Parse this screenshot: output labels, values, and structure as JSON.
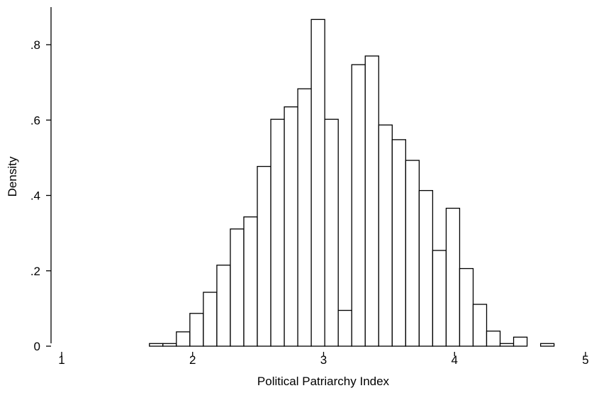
{
  "chart_data": {
    "type": "bar",
    "subtype": "histogram",
    "title": "",
    "xlabel": "Political Patriarchy Index",
    "ylabel": "Density",
    "xlim": [
      1,
      5
    ],
    "ylim": [
      0,
      0.9
    ],
    "xticks": [
      {
        "value": 1,
        "label": "1"
      },
      {
        "value": 2,
        "label": "2"
      },
      {
        "value": 3,
        "label": "3"
      },
      {
        "value": 4,
        "label": "4"
      },
      {
        "value": 5,
        "label": "5"
      }
    ],
    "yticks": [
      {
        "value": 0,
        "label": "0"
      },
      {
        "value": 0.2,
        "label": ".2"
      },
      {
        "value": 0.4,
        "label": ".4"
      },
      {
        "value": 0.6,
        "label": ".6"
      },
      {
        "value": 0.8,
        "label": ".8"
      }
    ],
    "grid": false,
    "legend": false,
    "bar_fill": "#ffffff",
    "bar_stroke": "#000000",
    "bin_width": 0.103,
    "bins": [
      {
        "x_start": 1.67,
        "density": 0.007
      },
      {
        "x_start": 1.773,
        "density": 0.007
      },
      {
        "x_start": 1.876,
        "density": 0.038
      },
      {
        "x_start": 1.979,
        "density": 0.087
      },
      {
        "x_start": 2.082,
        "density": 0.143
      },
      {
        "x_start": 2.185,
        "density": 0.215
      },
      {
        "x_start": 2.288,
        "density": 0.311
      },
      {
        "x_start": 2.391,
        "density": 0.343
      },
      {
        "x_start": 2.494,
        "density": 0.477
      },
      {
        "x_start": 2.597,
        "density": 0.602
      },
      {
        "x_start": 2.7,
        "density": 0.635
      },
      {
        "x_start": 2.803,
        "density": 0.683
      },
      {
        "x_start": 2.906,
        "density": 0.867
      },
      {
        "x_start": 3.009,
        "density": 0.602
      },
      {
        "x_start": 3.112,
        "density": 0.095
      },
      {
        "x_start": 3.215,
        "density": 0.747
      },
      {
        "x_start": 3.318,
        "density": 0.77
      },
      {
        "x_start": 3.421,
        "density": 0.587
      },
      {
        "x_start": 3.524,
        "density": 0.548
      },
      {
        "x_start": 3.627,
        "density": 0.493
      },
      {
        "x_start": 3.73,
        "density": 0.413
      },
      {
        "x_start": 3.833,
        "density": 0.254
      },
      {
        "x_start": 3.936,
        "density": 0.366
      },
      {
        "x_start": 4.039,
        "density": 0.206
      },
      {
        "x_start": 4.142,
        "density": 0.111
      },
      {
        "x_start": 4.245,
        "density": 0.04
      },
      {
        "x_start": 4.348,
        "density": 0.007
      },
      {
        "x_start": 4.451,
        "density": 0.024
      },
      {
        "x_start": 4.657,
        "density": 0.007
      }
    ]
  }
}
